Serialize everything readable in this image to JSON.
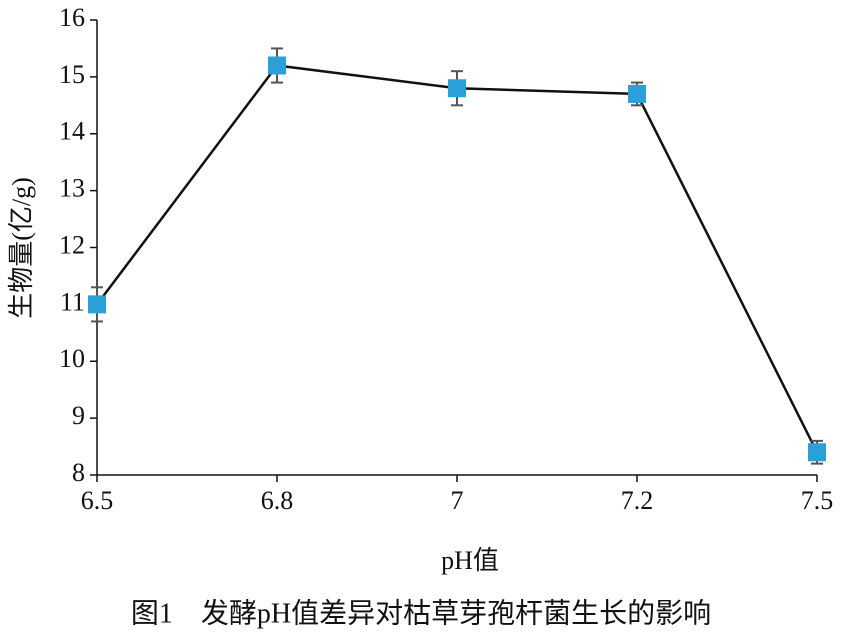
{
  "chart_data": {
    "type": "line",
    "x_label": "pH值",
    "y_label": "生物量(亿/g)",
    "caption": "图1　发酵pH值差异对枯草芽孢杆菌生长的影响",
    "categories": [
      "6.5",
      "6.8",
      "7",
      "7.2",
      "7.5"
    ],
    "series": [
      {
        "name": "生物量",
        "color": "#2a9fd8",
        "line_color": "#111111",
        "values": [
          11.0,
          15.2,
          14.8,
          14.7,
          8.4
        ],
        "errors": [
          0.3,
          0.3,
          0.3,
          0.2,
          0.2
        ]
      }
    ],
    "ylim": [
      8,
      16
    ],
    "yticks": [
      8,
      9,
      10,
      11,
      12,
      13,
      14,
      15,
      16
    ]
  }
}
